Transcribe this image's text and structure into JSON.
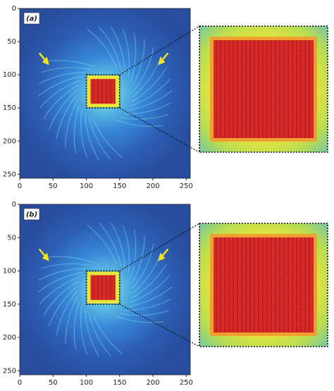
{
  "chart_data": [
    {
      "type": "image",
      "label": "(a)",
      "xlim": [
        0,
        256
      ],
      "ylim": [
        256,
        0
      ],
      "xticks": [
        0,
        50,
        100,
        150,
        200,
        250
      ],
      "yticks": [
        0,
        50,
        100,
        150,
        200,
        250
      ],
      "zoom_region": {
        "x": [
          100,
          150
        ],
        "y": [
          100,
          150
        ]
      }
    },
    {
      "type": "image",
      "label": "(b)",
      "xlim": [
        0,
        256
      ],
      "ylim": [
        256,
        0
      ],
      "xticks": [
        0,
        50,
        100,
        150,
        200,
        250
      ],
      "yticks": [
        0,
        50,
        100,
        150,
        200,
        250
      ],
      "zoom_region": {
        "x": [
          100,
          150
        ],
        "y": [
          100,
          150
        ]
      }
    }
  ]
}
